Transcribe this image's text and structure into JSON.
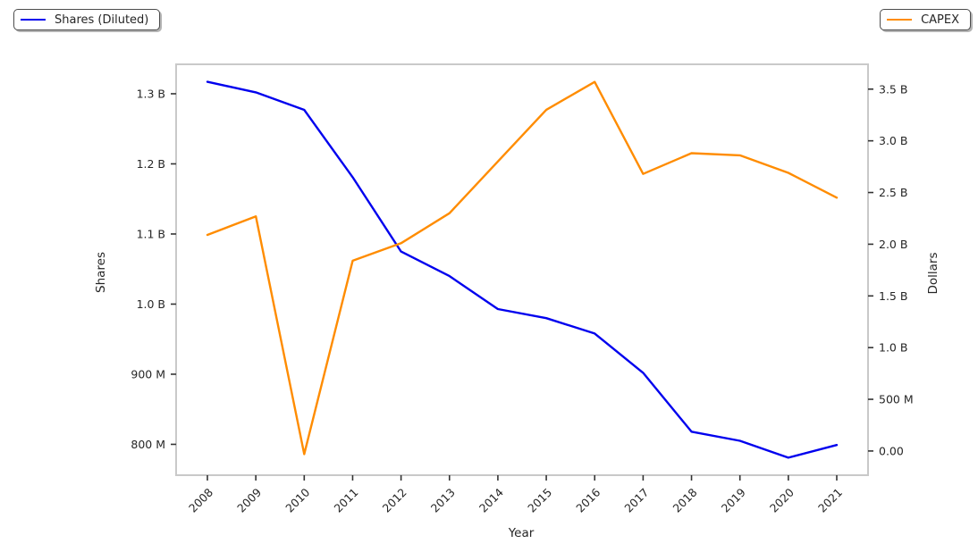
{
  "legends": {
    "shares": {
      "label": "Shares (Diluted)",
      "color": "#0000ee"
    },
    "capex": {
      "label": "CAPEX",
      "color": "#ff8c00"
    }
  },
  "chart_data": {
    "type": "line",
    "x": [
      2008,
      2009,
      2010,
      2011,
      2012,
      2013,
      2014,
      2015,
      2016,
      2017,
      2018,
      2019,
      2020,
      2021
    ],
    "x_tick_labels": [
      "2008",
      "2009",
      "2010",
      "2011",
      "2012",
      "2013",
      "2014",
      "2015",
      "2016",
      "2017",
      "2018",
      "2019",
      "2020",
      "2021"
    ],
    "xlabel": "Year",
    "grid": false,
    "series": [
      {
        "name": "Shares (Diluted)",
        "axis": "left",
        "color": "#0000ee",
        "units": "billions",
        "values": [
          1.317,
          1.302,
          1.277,
          1.181,
          1.075,
          1.04,
          0.993,
          0.98,
          0.958,
          0.902,
          0.818,
          0.805,
          0.781,
          0.799
        ]
      },
      {
        "name": "CAPEX",
        "axis": "right",
        "color": "#ff8c00",
        "units": "billions",
        "values": [
          2.09,
          2.27,
          -0.03,
          1.84,
          2.01,
          2.3,
          2.8,
          3.3,
          3.57,
          2.68,
          2.88,
          2.86,
          2.69,
          2.45
        ]
      }
    ],
    "left_axis": {
      "label": "Shares",
      "units": "billions",
      "tick_values": [
        1.3,
        1.2,
        1.1,
        1.0,
        0.9,
        0.8
      ],
      "tick_labels": [
        "1.3 B",
        "1.2 B",
        "1.1 B",
        "1.0 B",
        "900 M",
        "800 M"
      ],
      "range": [
        0.756,
        1.342
      ]
    },
    "right_axis": {
      "label": "Dollars",
      "units": "billions",
      "tick_values": [
        3.5,
        3.0,
        2.5,
        2.0,
        1.5,
        1.0,
        0.5,
        0.0
      ],
      "tick_labels": [
        "3.5 B",
        "3.0 B",
        "2.5 B",
        "2.0 B",
        "1.5 B",
        "1.0 B",
        "500 M",
        "0.00"
      ],
      "range": [
        -0.234,
        3.74
      ]
    },
    "legend_positions": [
      "upper left",
      "upper right"
    ]
  }
}
